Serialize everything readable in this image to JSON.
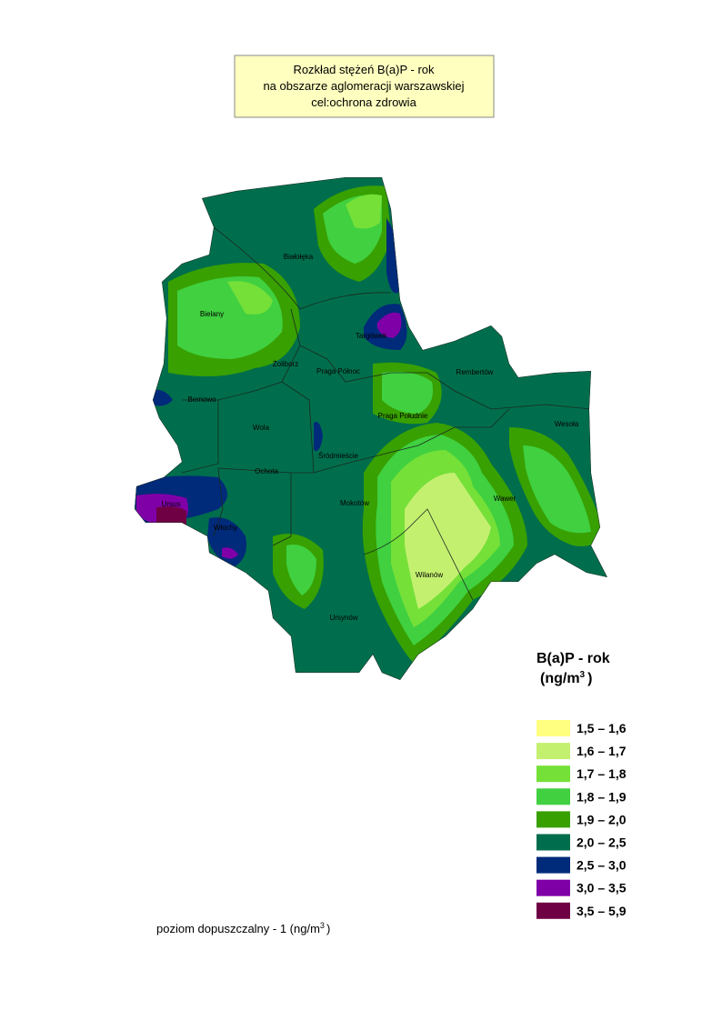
{
  "header": {
    "title_lines": [
      "Rozkład stężeń  B(a)P - rok",
      "na obszarze aglomeracji warszawskiej",
      "cel:ochrona zdrowia"
    ]
  },
  "districts": [
    "Białołęka",
    "Bielany",
    "Targówek",
    "Żoliborz",
    "Praga Północ",
    "Rembertów",
    "Bemowo",
    "Praga Południe",
    "Wesoła",
    "Wola",
    "Śródmieście",
    "Ochota",
    "Wawer",
    "Ursus",
    "Mokotów",
    "Włochy",
    "Wilanów",
    "Ursynów"
  ],
  "legend": {
    "title": "B(a)P - rok",
    "unit_prefix": "(ng/m",
    "unit_sup": "3",
    "unit_suffix": ")",
    "items": [
      {
        "label": "1,5 – 1,6",
        "color": "#ffff80"
      },
      {
        "label": "1,6 – 1,7",
        "color": "#c4f070"
      },
      {
        "label": "1,7 – 1,8",
        "color": "#74e038"
      },
      {
        "label": "1,8 – 1,9",
        "color": "#40d040"
      },
      {
        "label": "1,9 – 2,0",
        "color": "#38a000"
      },
      {
        "label": "2,0 – 2,5",
        "color": "#006e4c"
      },
      {
        "label": "2,5 – 3,0",
        "color": "#002a7a"
      },
      {
        "label": "3,0 – 3,5",
        "color": "#8000a8"
      },
      {
        "label": "3,5 – 5,9",
        "color": "#700044"
      }
    ]
  },
  "footnote": {
    "text": "poziom dopuszczalny - 1 (ng/m",
    "sup": "3",
    "suffix": ")"
  }
}
